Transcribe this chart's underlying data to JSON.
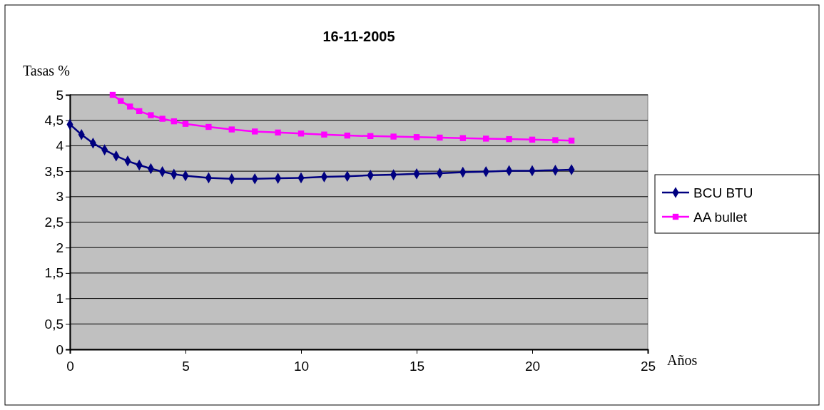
{
  "chart_data": {
    "type": "line",
    "title": "16-11-2005",
    "xlabel": "Años",
    "ylabel": "Tasas %",
    "xlim": [
      0,
      25
    ],
    "xticks": [
      0,
      5,
      10,
      15,
      20,
      25
    ],
    "ylim": [
      0,
      5
    ],
    "yticks": [
      0,
      {
        "value": 0.5,
        "label": "0,5"
      },
      1,
      {
        "value": 1.5,
        "label": "1,5"
      },
      2,
      {
        "value": 2.5,
        "label": "2,5"
      },
      3,
      {
        "value": 3.5,
        "label": "3,5"
      },
      4,
      {
        "value": 4.5,
        "label": "4,5"
      },
      5
    ],
    "grid": "y",
    "legend": "right",
    "series": [
      {
        "name": "BCU BTU",
        "color": "#000080",
        "marker": "diamond",
        "x": [
          0,
          0.5,
          1,
          1.5,
          2,
          2.5,
          3,
          3.5,
          4,
          4.5,
          5,
          6,
          7,
          8,
          9,
          10,
          11,
          12,
          13,
          14,
          15,
          16,
          17,
          18,
          19,
          20,
          21,
          21.7
        ],
        "values": [
          4.42,
          4.22,
          4.05,
          3.92,
          3.8,
          3.7,
          3.62,
          3.55,
          3.49,
          3.44,
          3.41,
          3.37,
          3.35,
          3.35,
          3.36,
          3.37,
          3.39,
          3.4,
          3.42,
          3.43,
          3.45,
          3.46,
          3.48,
          3.49,
          3.51,
          3.51,
          3.52,
          3.53
        ]
      },
      {
        "name": "AA bullet",
        "color": "#ff00ff",
        "marker": "square",
        "x": [
          1.85,
          2.2,
          2.6,
          3,
          3.5,
          4,
          4.5,
          5,
          6,
          7,
          8,
          9,
          10,
          11,
          12,
          13,
          14,
          15,
          16,
          17,
          18,
          19,
          20,
          21,
          21.7
        ],
        "values": [
          5.0,
          4.88,
          4.77,
          4.68,
          4.6,
          4.53,
          4.48,
          4.43,
          4.37,
          4.32,
          4.28,
          4.26,
          4.24,
          4.22,
          4.2,
          4.19,
          4.18,
          4.17,
          4.16,
          4.15,
          4.14,
          4.13,
          4.12,
          4.11,
          4.1
        ]
      }
    ]
  }
}
